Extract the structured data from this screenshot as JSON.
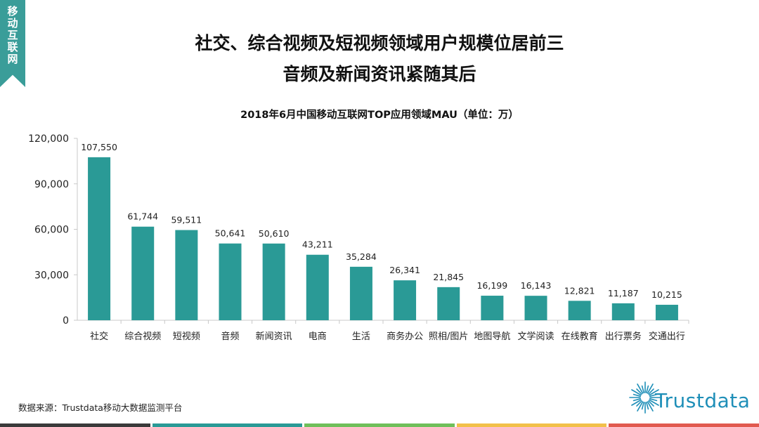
{
  "corner_tag": "移动互联网",
  "title_line1": "社交、综合视频及短视频领域用户规模位居前三",
  "title_line2": "音频及新闻资讯紧随其后",
  "source": "数据来源：Trustdata移动大数据监测平台",
  "logo_text": "Trustdata",
  "colors": {
    "bar": "#2a9a96",
    "tag": "#3a9d99",
    "logo": "#1f8fb8",
    "stripes": [
      "#3a3a3a",
      "#2a9a96",
      "#6fbf5a",
      "#f2c04a",
      "#e15a4f"
    ]
  },
  "chart_data": {
    "type": "bar",
    "title": "2018年6月中国移动互联网TOP应用领域MAU（单位：万）",
    "categories": [
      "社交",
      "综合视频",
      "短视频",
      "音频",
      "新闻资讯",
      "电商",
      "生活",
      "商务办公",
      "照相/图片",
      "地图导航",
      "文学阅读",
      "在线教育",
      "出行票务",
      "交通出行"
    ],
    "values": [
      107550,
      61744,
      59511,
      50641,
      50610,
      43211,
      35284,
      26341,
      21845,
      16199,
      16143,
      12821,
      11187,
      10215
    ],
    "value_labels": [
      "107,550",
      "61,744",
      "59,511",
      "50,641",
      "50,610",
      "43,211",
      "35,284",
      "26,341",
      "21,845",
      "16,199",
      "16,143",
      "12,821",
      "11,187",
      "10,215"
    ],
    "yticks": [
      0,
      30000,
      60000,
      90000,
      120000
    ],
    "ytick_labels": [
      "0",
      "30,000",
      "60,000",
      "90,000",
      "120,000"
    ],
    "ylim": [
      0,
      120000
    ],
    "grid": false,
    "legend": "none"
  }
}
